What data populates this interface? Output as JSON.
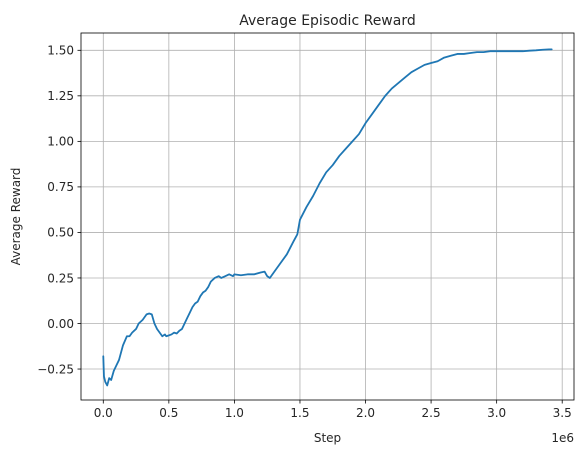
{
  "chart_data": {
    "type": "line",
    "title": "Average Episodic Reward",
    "xlabel": "Step",
    "ylabel": "Average Reward",
    "x_offset_label": "1e6",
    "x_scale": 1000000,
    "xlim": [
      -170000,
      3590000
    ],
    "ylim": [
      -0.42,
      1.595
    ],
    "xticks": [
      0,
      500000,
      1000000,
      1500000,
      2000000,
      2500000,
      3000000,
      3500000
    ],
    "xtick_labels": [
      "0.0",
      "0.5",
      "1.0",
      "1.5",
      "2.0",
      "2.5",
      "3.0",
      "3.5"
    ],
    "yticks": [
      -0.25,
      0.0,
      0.25,
      0.5,
      0.75,
      1.0,
      1.25,
      1.5
    ],
    "ytick_labels": [
      "−0.25",
      "0.00",
      "0.25",
      "0.50",
      "0.75",
      "1.00",
      "1.25",
      "1.50"
    ],
    "grid": true,
    "series": [
      {
        "name": "",
        "color": "#1f77b4",
        "x": [
          0,
          5000,
          15000,
          30000,
          45000,
          60000,
          80000,
          100000,
          120000,
          150000,
          180000,
          200000,
          220000,
          250000,
          270000,
          300000,
          330000,
          350000,
          370000,
          390000,
          410000,
          430000,
          450000,
          470000,
          480000,
          500000,
          520000,
          540000,
          560000,
          580000,
          600000,
          620000,
          640000,
          660000,
          680000,
          700000,
          720000,
          740000,
          760000,
          780000,
          800000,
          820000,
          850000,
          880000,
          900000,
          930000,
          960000,
          990000,
          1000000,
          1050000,
          1100000,
          1150000,
          1200000,
          1230000,
          1250000,
          1270000,
          1300000,
          1350000,
          1400000,
          1450000,
          1480000,
          1500000,
          1550000,
          1600000,
          1650000,
          1700000,
          1750000,
          1800000,
          1850000,
          1900000,
          1950000,
          2000000,
          2050000,
          2100000,
          2150000,
          2200000,
          2250000,
          2300000,
          2350000,
          2400000,
          2450000,
          2500000,
          2550000,
          2600000,
          2650000,
          2700000,
          2750000,
          2800000,
          2850000,
          2900000,
          2950000,
          3000000,
          3050000,
          3100000,
          3150000,
          3200000,
          3250000,
          3300000,
          3350000,
          3400000,
          3420000
        ],
        "values": [
          -0.18,
          -0.29,
          -0.32,
          -0.34,
          -0.3,
          -0.31,
          -0.26,
          -0.23,
          -0.2,
          -0.12,
          -0.07,
          -0.07,
          -0.05,
          -0.03,
          0.0,
          0.02,
          0.05,
          0.055,
          0.05,
          0.0,
          -0.03,
          -0.05,
          -0.07,
          -0.06,
          -0.07,
          -0.065,
          -0.06,
          -0.05,
          -0.055,
          -0.04,
          -0.03,
          0.0,
          0.03,
          0.06,
          0.09,
          0.11,
          0.12,
          0.15,
          0.17,
          0.18,
          0.2,
          0.23,
          0.25,
          0.26,
          0.25,
          0.26,
          0.27,
          0.26,
          0.27,
          0.265,
          0.27,
          0.27,
          0.28,
          0.285,
          0.26,
          0.25,
          0.28,
          0.33,
          0.38,
          0.45,
          0.49,
          0.57,
          0.64,
          0.7,
          0.77,
          0.83,
          0.87,
          0.92,
          0.96,
          1.0,
          1.04,
          1.1,
          1.15,
          1.2,
          1.25,
          1.29,
          1.32,
          1.35,
          1.38,
          1.4,
          1.42,
          1.43,
          1.44,
          1.46,
          1.47,
          1.48,
          1.48,
          1.485,
          1.49,
          1.49,
          1.495,
          1.495,
          1.495,
          1.495,
          1.495,
          1.495,
          1.498,
          1.5,
          1.503,
          1.505,
          1.505
        ]
      }
    ]
  }
}
